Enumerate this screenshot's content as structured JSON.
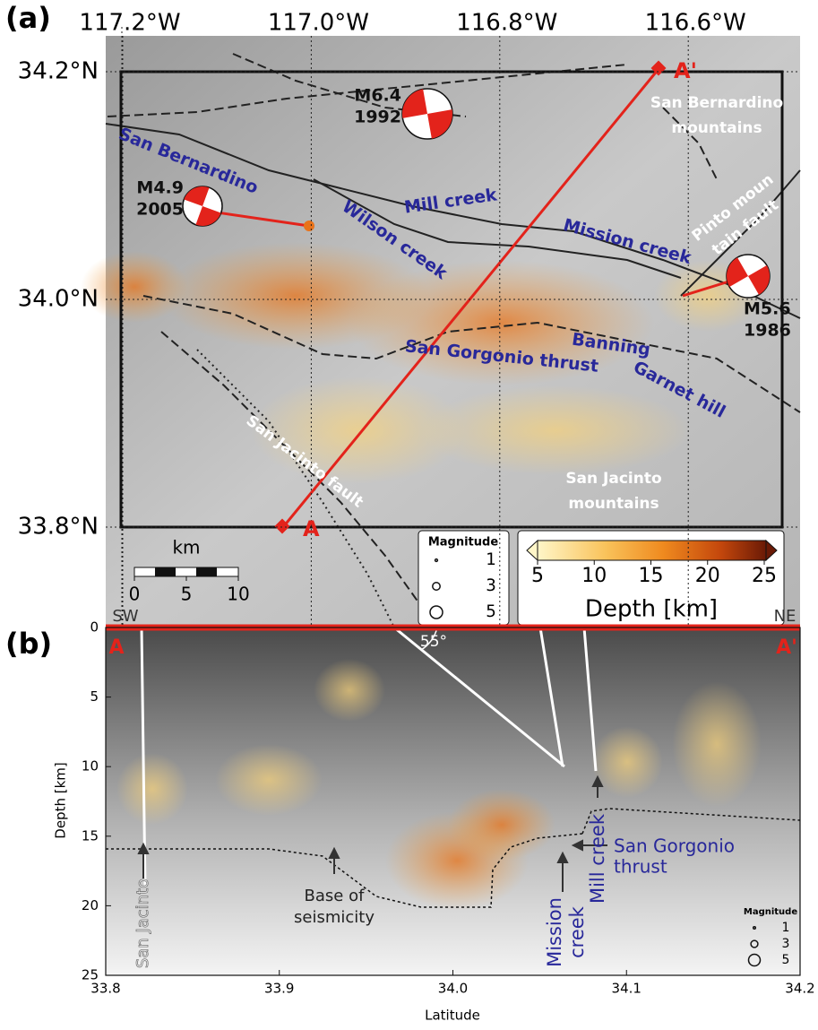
{
  "panel_a": {
    "label": "(a)",
    "lon_ticks": [
      {
        "value": -117.2,
        "label": "117.2°W"
      },
      {
        "value": -117.0,
        "label": "117.0°W"
      },
      {
        "value": -116.8,
        "label": "116.8°W"
      },
      {
        "value": -116.6,
        "label": "116.6°W"
      }
    ],
    "lat_ticks": [
      {
        "value": 34.2,
        "label": "34.2°N"
      },
      {
        "value": 34.0,
        "label": "34.0°N"
      },
      {
        "value": 33.8,
        "label": "33.8°N"
      }
    ],
    "fault_labels": [
      [
        "San Bernardino"
      ],
      [
        "Wilson creek"
      ],
      [
        "Mill creek"
      ],
      [
        "Mission creek"
      ],
      [
        "San Gorgonio thrust"
      ],
      [
        "Banning"
      ],
      [
        "Garnet hill"
      ],
      [
        "San Jacinto fault"
      ],
      [
        "Pinto moun",
        "tain fault"
      ]
    ],
    "place_labels": [
      [
        "San Bernardino",
        "mountains"
      ],
      [
        "San Jacinto",
        "mountains"
      ]
    ],
    "events": [
      {
        "magnitude": "M6.4",
        "year": "1992"
      },
      {
        "magnitude": "M4.9",
        "year": "2005"
      },
      {
        "magnitude": "M5.6",
        "year": "1986"
      }
    ],
    "profile_ends": [
      "A",
      "A'"
    ],
    "scale_bar": {
      "unit": "km",
      "ticks": [
        0,
        5,
        10
      ]
    },
    "magnitude_legend": {
      "title": "Magnitude",
      "sizes": [
        1,
        3,
        5
      ]
    },
    "colorbar": {
      "label": "Depth [km]",
      "lim": [
        5,
        25
      ],
      "ticks": [
        5,
        10,
        15,
        20,
        25
      ]
    }
  },
  "panel_b": {
    "label": "(b)",
    "xlabel": "Latitude",
    "ylabel": "Depth [km]",
    "xlim": [
      33.8,
      34.2
    ],
    "xticks": [
      33.8,
      33.9,
      {
        "value": 34,
        "label": "34.0"
      },
      34.1,
      34.2
    ],
    "ylim": [
      0,
      25
    ],
    "yticks": [
      0,
      5,
      10,
      15,
      20,
      25
    ],
    "directions": [
      "SW",
      "NE"
    ],
    "profile_ends": [
      "A",
      "A'"
    ],
    "angle_label": "55°",
    "annotations": [
      [
        "San Jacinto"
      ],
      [
        "Base of",
        "seismicity"
      ],
      [
        "Mission",
        "creek"
      ],
      [
        "Mill creek"
      ],
      [
        "San Gorgonio",
        "thrust"
      ]
    ],
    "magnitude_legend": {
      "title": "Magnitude",
      "sizes": [
        1,
        3,
        5
      ]
    }
  }
}
